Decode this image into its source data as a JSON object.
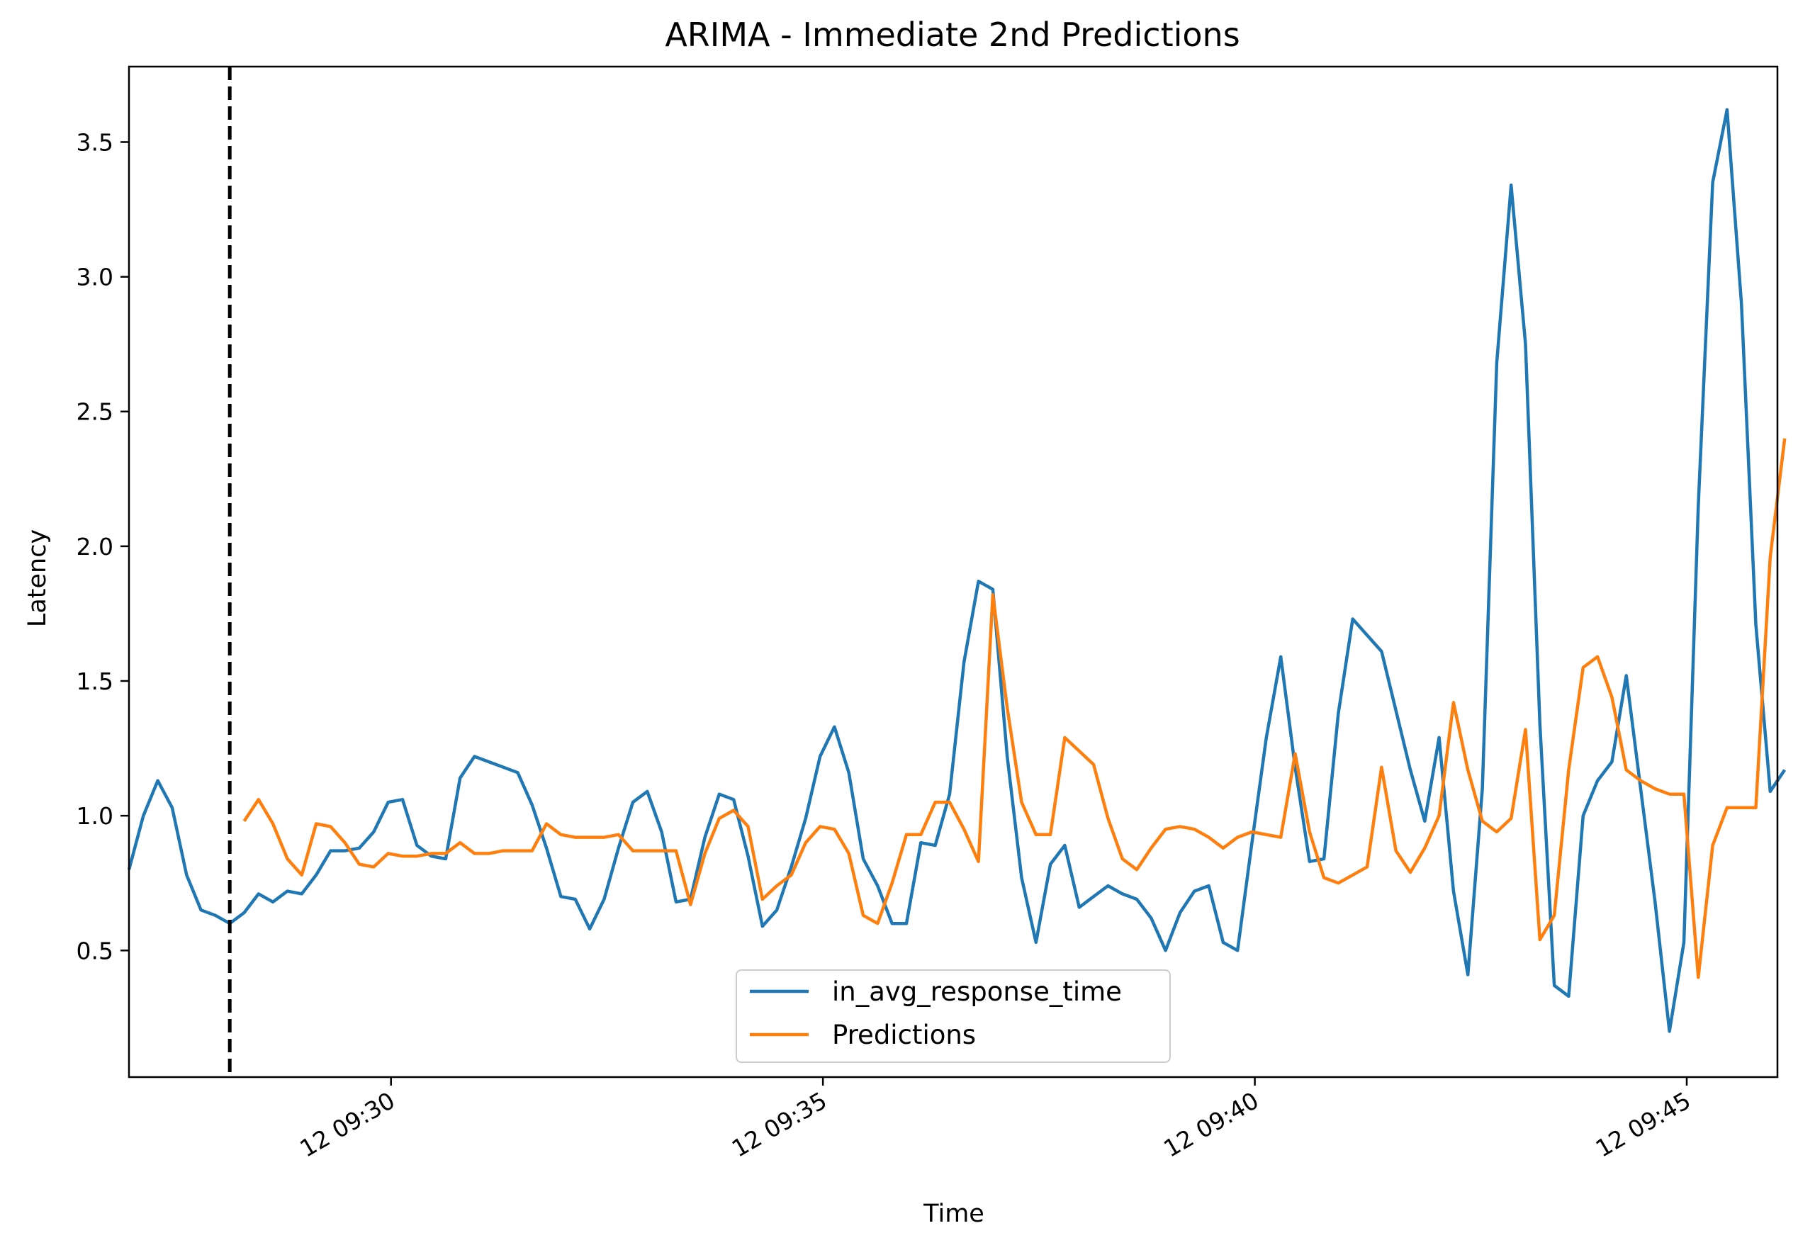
{
  "chart_data": {
    "type": "line",
    "title": "ARIMA - Immediate 2nd Predictions",
    "xlabel": "Time",
    "ylabel": "Latency",
    "x_start": "12 09:26:58",
    "x_step_seconds": 10,
    "x_ticks": [
      "12 09:30",
      "12 09:35",
      "12 09:40",
      "12 09:45"
    ],
    "y_ticks": [
      "0.5",
      "1.0",
      "1.5",
      "2.0",
      "2.5",
      "3.0",
      "3.5"
    ],
    "ylim": [
      0.03,
      3.78
    ],
    "xlim": [
      "12 09:26:58",
      "12 09:46:03"
    ],
    "vline_at": "12 09:28:08",
    "legend_position": "lower-center",
    "series": [
      {
        "name": "in_avg_response_time",
        "color": "#1f77b4",
        "start_index": 0,
        "values": [
          0.8,
          1.0,
          1.13,
          1.03,
          0.78,
          0.65,
          0.63,
          0.6,
          0.64,
          0.71,
          0.68,
          0.72,
          0.71,
          0.78,
          0.87,
          0.87,
          0.88,
          0.94,
          1.05,
          1.06,
          0.89,
          0.85,
          0.84,
          1.14,
          1.22,
          1.2,
          1.18,
          1.16,
          1.04,
          0.88,
          0.7,
          0.69,
          0.58,
          0.69,
          0.88,
          1.05,
          1.09,
          0.94,
          0.68,
          0.69,
          0.92,
          1.08,
          1.06,
          0.85,
          0.59,
          0.65,
          0.81,
          0.99,
          1.22,
          1.33,
          1.16,
          0.84,
          0.74,
          0.6,
          0.6,
          0.9,
          0.89,
          1.08,
          1.57,
          1.87,
          1.84,
          1.22,
          0.77,
          0.53,
          0.82,
          0.89,
          0.66,
          0.7,
          0.74,
          0.71,
          0.69,
          0.62,
          0.5,
          0.64,
          0.72,
          0.74,
          0.53,
          0.5,
          0.9,
          1.29,
          1.59,
          1.18,
          0.83,
          0.84,
          1.38,
          1.73,
          1.67,
          1.61,
          1.39,
          1.17,
          0.98,
          1.29,
          0.72,
          0.41,
          1.1,
          2.68,
          3.34,
          2.75,
          1.34,
          0.37,
          0.33,
          1.0,
          1.13,
          1.2,
          1.52,
          1.1,
          0.68,
          0.2,
          0.53,
          2.15,
          3.35,
          3.62,
          2.9,
          1.71,
          1.09,
          1.17
        ]
      },
      {
        "name": "Predictions",
        "color": "#ff7f0e",
        "start_index": 8,
        "values": [
          0.98,
          1.06,
          0.97,
          0.84,
          0.78,
          0.97,
          0.96,
          0.9,
          0.82,
          0.81,
          0.86,
          0.85,
          0.85,
          0.86,
          0.86,
          0.9,
          0.86,
          0.86,
          0.87,
          0.87,
          0.87,
          0.97,
          0.93,
          0.92,
          0.92,
          0.92,
          0.93,
          0.87,
          0.87,
          0.87,
          0.87,
          0.67,
          0.86,
          0.99,
          1.02,
          0.96,
          0.69,
          0.74,
          0.78,
          0.9,
          0.96,
          0.95,
          0.86,
          0.63,
          0.6,
          0.75,
          0.93,
          0.93,
          1.05,
          1.05,
          0.95,
          0.83,
          1.82,
          1.4,
          1.05,
          0.93,
          0.93,
          1.29,
          1.24,
          1.19,
          0.99,
          0.84,
          0.8,
          0.88,
          0.95,
          0.96,
          0.95,
          0.92,
          0.88,
          0.92,
          0.94,
          0.93,
          0.92,
          1.23,
          0.94,
          0.77,
          0.75,
          0.78,
          0.81,
          1.18,
          0.87,
          0.79,
          0.88,
          1.0,
          1.42,
          1.17,
          0.98,
          0.94,
          0.99,
          1.32,
          0.54,
          0.63,
          1.17,
          1.55,
          1.59,
          1.44,
          1.17,
          1.13,
          1.1,
          1.08,
          1.08,
          0.4,
          0.89,
          1.03,
          1.03,
          1.03,
          1.96,
          2.4
        ]
      }
    ]
  }
}
